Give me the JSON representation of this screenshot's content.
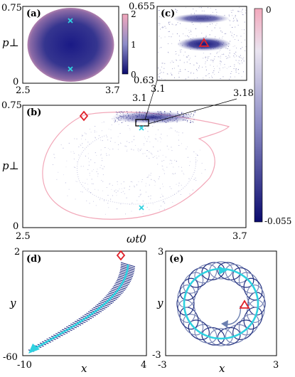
{
  "figure": {
    "panels": [
      {
        "id": "a",
        "tag": "(a)",
        "ylabel": "p⊥",
        "yticks": [
          "0.75",
          "0"
        ],
        "xticks": [
          "2.5",
          "3.7"
        ],
        "colorbar": {
          "ticks": [
            "2",
            "1",
            "0"
          ]
        }
      },
      {
        "id": "b",
        "tag": "(b)",
        "xlabel": "ωt0",
        "ylabel": "p⊥",
        "yticks": [
          "0.75",
          "0"
        ],
        "xticks": [
          "2.5",
          "3.1",
          "3.7"
        ],
        "inset_label": "3.18",
        "colorbar": {
          "ticks": [
            "0",
            "-0.055"
          ]
        }
      },
      {
        "id": "c",
        "tag": "(c)",
        "yticks": [
          "0.655",
          "0.63"
        ],
        "xticks": [
          "3.1"
        ]
      },
      {
        "id": "d",
        "tag": "(d)",
        "xlabel": "x",
        "ylabel": "y",
        "yticks": [
          "2",
          "-60"
        ],
        "xticks": [
          "-10",
          "4"
        ]
      },
      {
        "id": "e",
        "tag": "(e)",
        "xlabel": "x",
        "ylabel": "y",
        "yticks": [
          "3",
          "-3"
        ],
        "xticks": [
          "-3",
          "3"
        ]
      }
    ],
    "colors": {
      "marker_red": "#e0222a",
      "marker_cyan": "#2fd1e0",
      "dark_blue": "#1a1a7a",
      "pink": "#f2a7b8"
    }
  },
  "chart_data": [
    {
      "type": "heatmap",
      "panel": "a",
      "xlim": [
        2.5,
        3.7
      ],
      "ylim": [
        0,
        0.75
      ],
      "clim": [
        0,
        2
      ]
    },
    {
      "type": "scatter",
      "panel": "b",
      "xlim": [
        2.5,
        3.7
      ],
      "ylim": [
        0,
        0.75
      ],
      "clim": [
        -0.055,
        0
      ],
      "markers": [
        {
          "symbol": "diamond",
          "x": 2.88,
          "y": 0.66
        },
        {
          "symbol": "x",
          "x": 3.1,
          "y": 0.58
        },
        {
          "symbol": "x",
          "x": 3.1,
          "y": 0.13
        }
      ]
    },
    {
      "type": "scatter",
      "panel": "c",
      "xlim": [
        3.1,
        3.18
      ],
      "ylim": [
        0.63,
        0.655
      ],
      "markers": [
        {
          "symbol": "triangle",
          "x": 3.141,
          "y": 0.6427
        }
      ]
    },
    {
      "type": "line",
      "panel": "d",
      "xlim": [
        -10,
        4
      ],
      "ylim": [
        -60,
        2
      ],
      "markers": [
        {
          "symbol": "diamond",
          "x": 1.1,
          "y": 0
        }
      ]
    },
    {
      "type": "line",
      "panel": "e",
      "xlim": [
        -3,
        3
      ],
      "ylim": [
        -3,
        3
      ],
      "markers": [
        {
          "symbol": "triangle",
          "x": 1.2,
          "y": 0
        }
      ]
    }
  ]
}
